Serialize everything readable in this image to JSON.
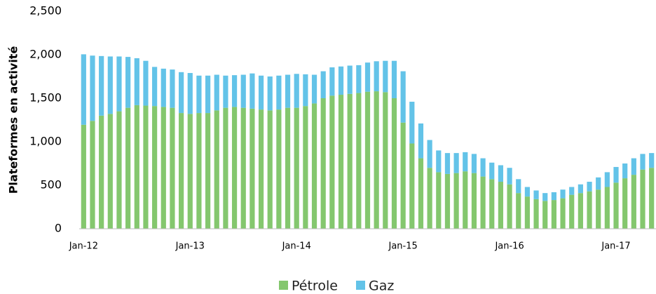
{
  "chart_data": {
    "type": "stacked_bar",
    "y_label": "Plateformes en activité",
    "categories": [
      "Jan-12",
      null,
      null,
      null,
      null,
      null,
      null,
      null,
      null,
      null,
      null,
      null,
      "Jan-13",
      null,
      null,
      null,
      null,
      null,
      null,
      null,
      null,
      null,
      null,
      null,
      "Jan-14",
      null,
      null,
      null,
      null,
      null,
      null,
      null,
      null,
      null,
      null,
      null,
      "Jan-15",
      null,
      null,
      null,
      null,
      null,
      null,
      null,
      null,
      null,
      null,
      null,
      "Jan-16",
      null,
      null,
      null,
      null,
      null,
      null,
      null,
      null,
      null,
      null,
      null,
      "Jan-17",
      null,
      null,
      null,
      null
    ],
    "series": [
      {
        "name": "Pétrole",
        "color": "#84c76e",
        "values": [
          1195,
          1240,
          1300,
          1320,
          1350,
          1390,
          1420,
          1415,
          1410,
          1400,
          1390,
          1330,
          1320,
          1330,
          1330,
          1360,
          1390,
          1400,
          1390,
          1380,
          1370,
          1360,
          1370,
          1390,
          1390,
          1410,
          1440,
          1500,
          1530,
          1540,
          1550,
          1560,
          1575,
          1580,
          1570,
          1500,
          1220,
          980,
          810,
          700,
          650,
          630,
          640,
          660,
          640,
          600,
          570,
          540,
          510,
          410,
          370,
          340,
          320,
          330,
          350,
          390,
          410,
          430,
          450,
          480,
          530,
          580,
          620,
          680,
          700
        ]
      },
      {
        "name": "Gaz",
        "color": "#63c3e8",
        "values": [
          810,
          750,
          685,
          660,
          630,
          585,
          540,
          515,
          450,
          440,
          440,
          470,
          470,
          430,
          430,
          410,
          370,
          365,
          380,
          405,
          390,
          390,
          390,
          380,
          390,
          365,
          330,
          310,
          325,
          325,
          325,
          320,
          335,
          345,
          360,
          430,
          590,
          480,
          400,
          320,
          250,
          240,
          230,
          220,
          220,
          210,
          190,
          190,
          190,
          160,
          110,
          100,
          90,
          90,
          100,
          90,
          100,
          110,
          140,
          170,
          180,
          170,
          190,
          180,
          170
        ]
      }
    ],
    "ylim": [
      0,
      2500
    ],
    "yticks": [
      0,
      500,
      {
        "value": 1000,
        "label": "1,000"
      },
      {
        "value": 1500,
        "label": "1,500"
      },
      {
        "value": 2000,
        "label": "2,000"
      },
      {
        "value": 2500,
        "label": "2,500"
      }
    ],
    "grid": false,
    "legend": "bottom"
  }
}
